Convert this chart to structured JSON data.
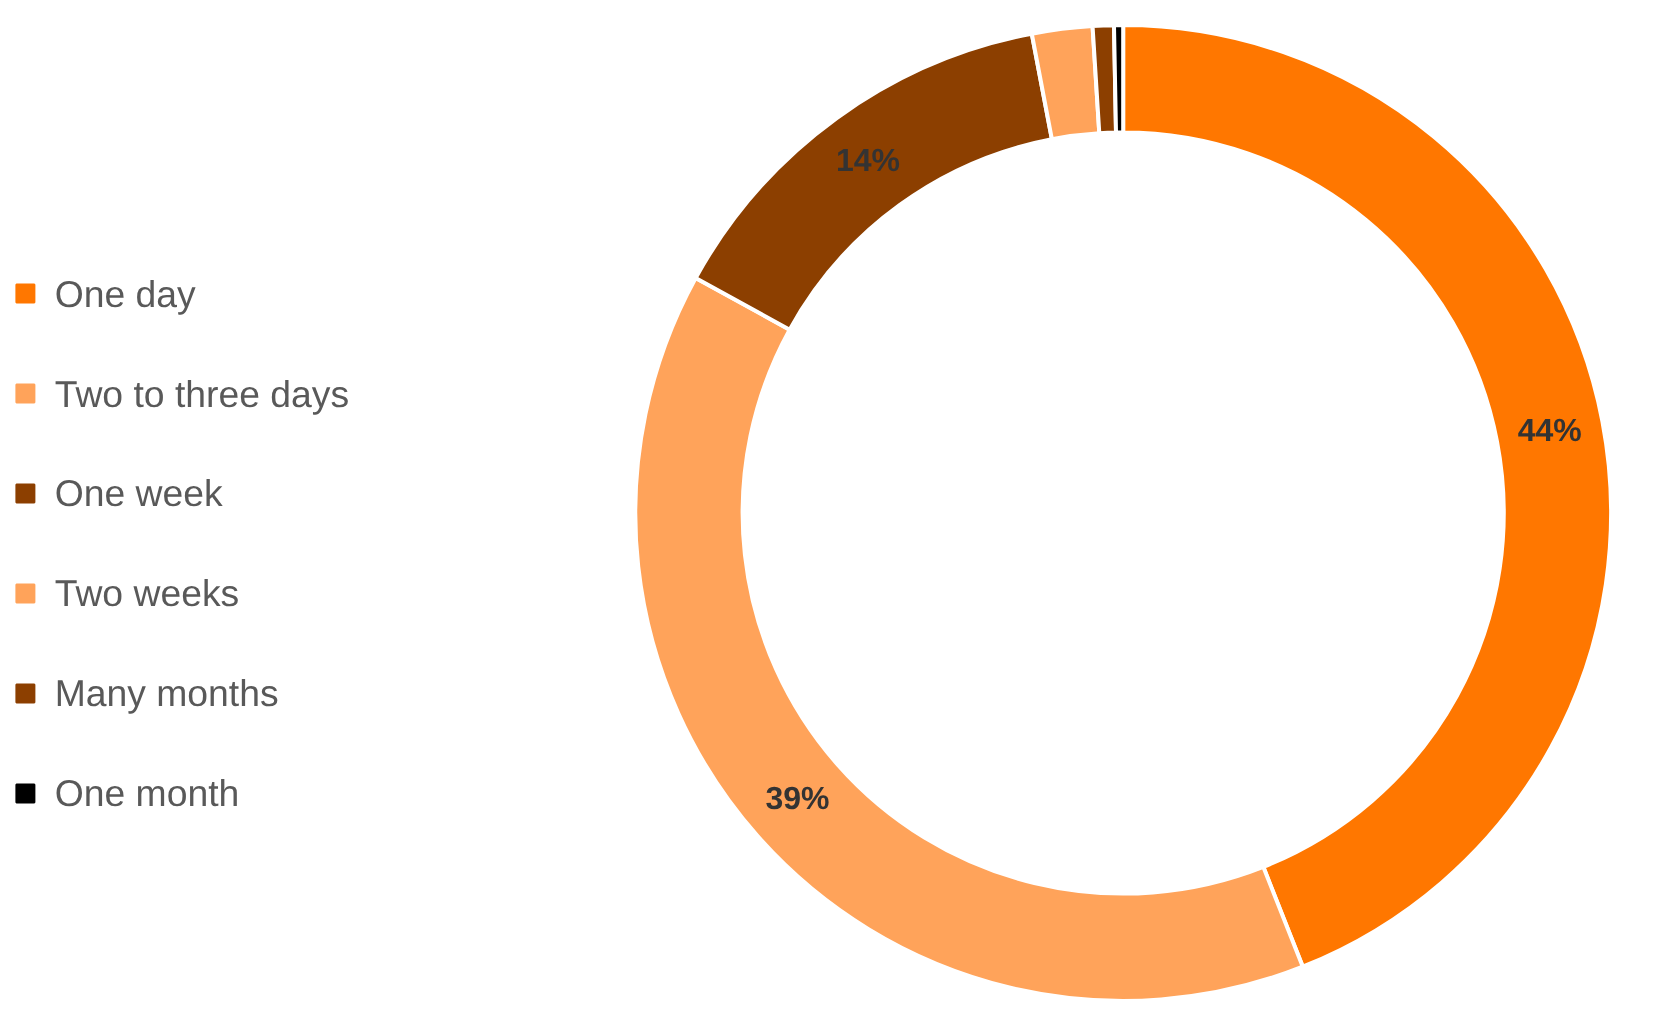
{
  "chart_data": {
    "type": "donut",
    "categories": [
      "One day",
      "Two to three days",
      "One week",
      "Two weeks",
      "Many months",
      "One month"
    ],
    "values": [
      44,
      39,
      14,
      2,
      0.7,
      0.3
    ],
    "colors": [
      "#ff7700",
      "#ffa35a",
      "#8c3f00",
      "#ffa35a",
      "#8c3f00",
      "#000000"
    ],
    "value_labels": [
      "44%",
      "39%",
      "14%",
      null,
      null,
      null
    ],
    "legend": "left"
  }
}
